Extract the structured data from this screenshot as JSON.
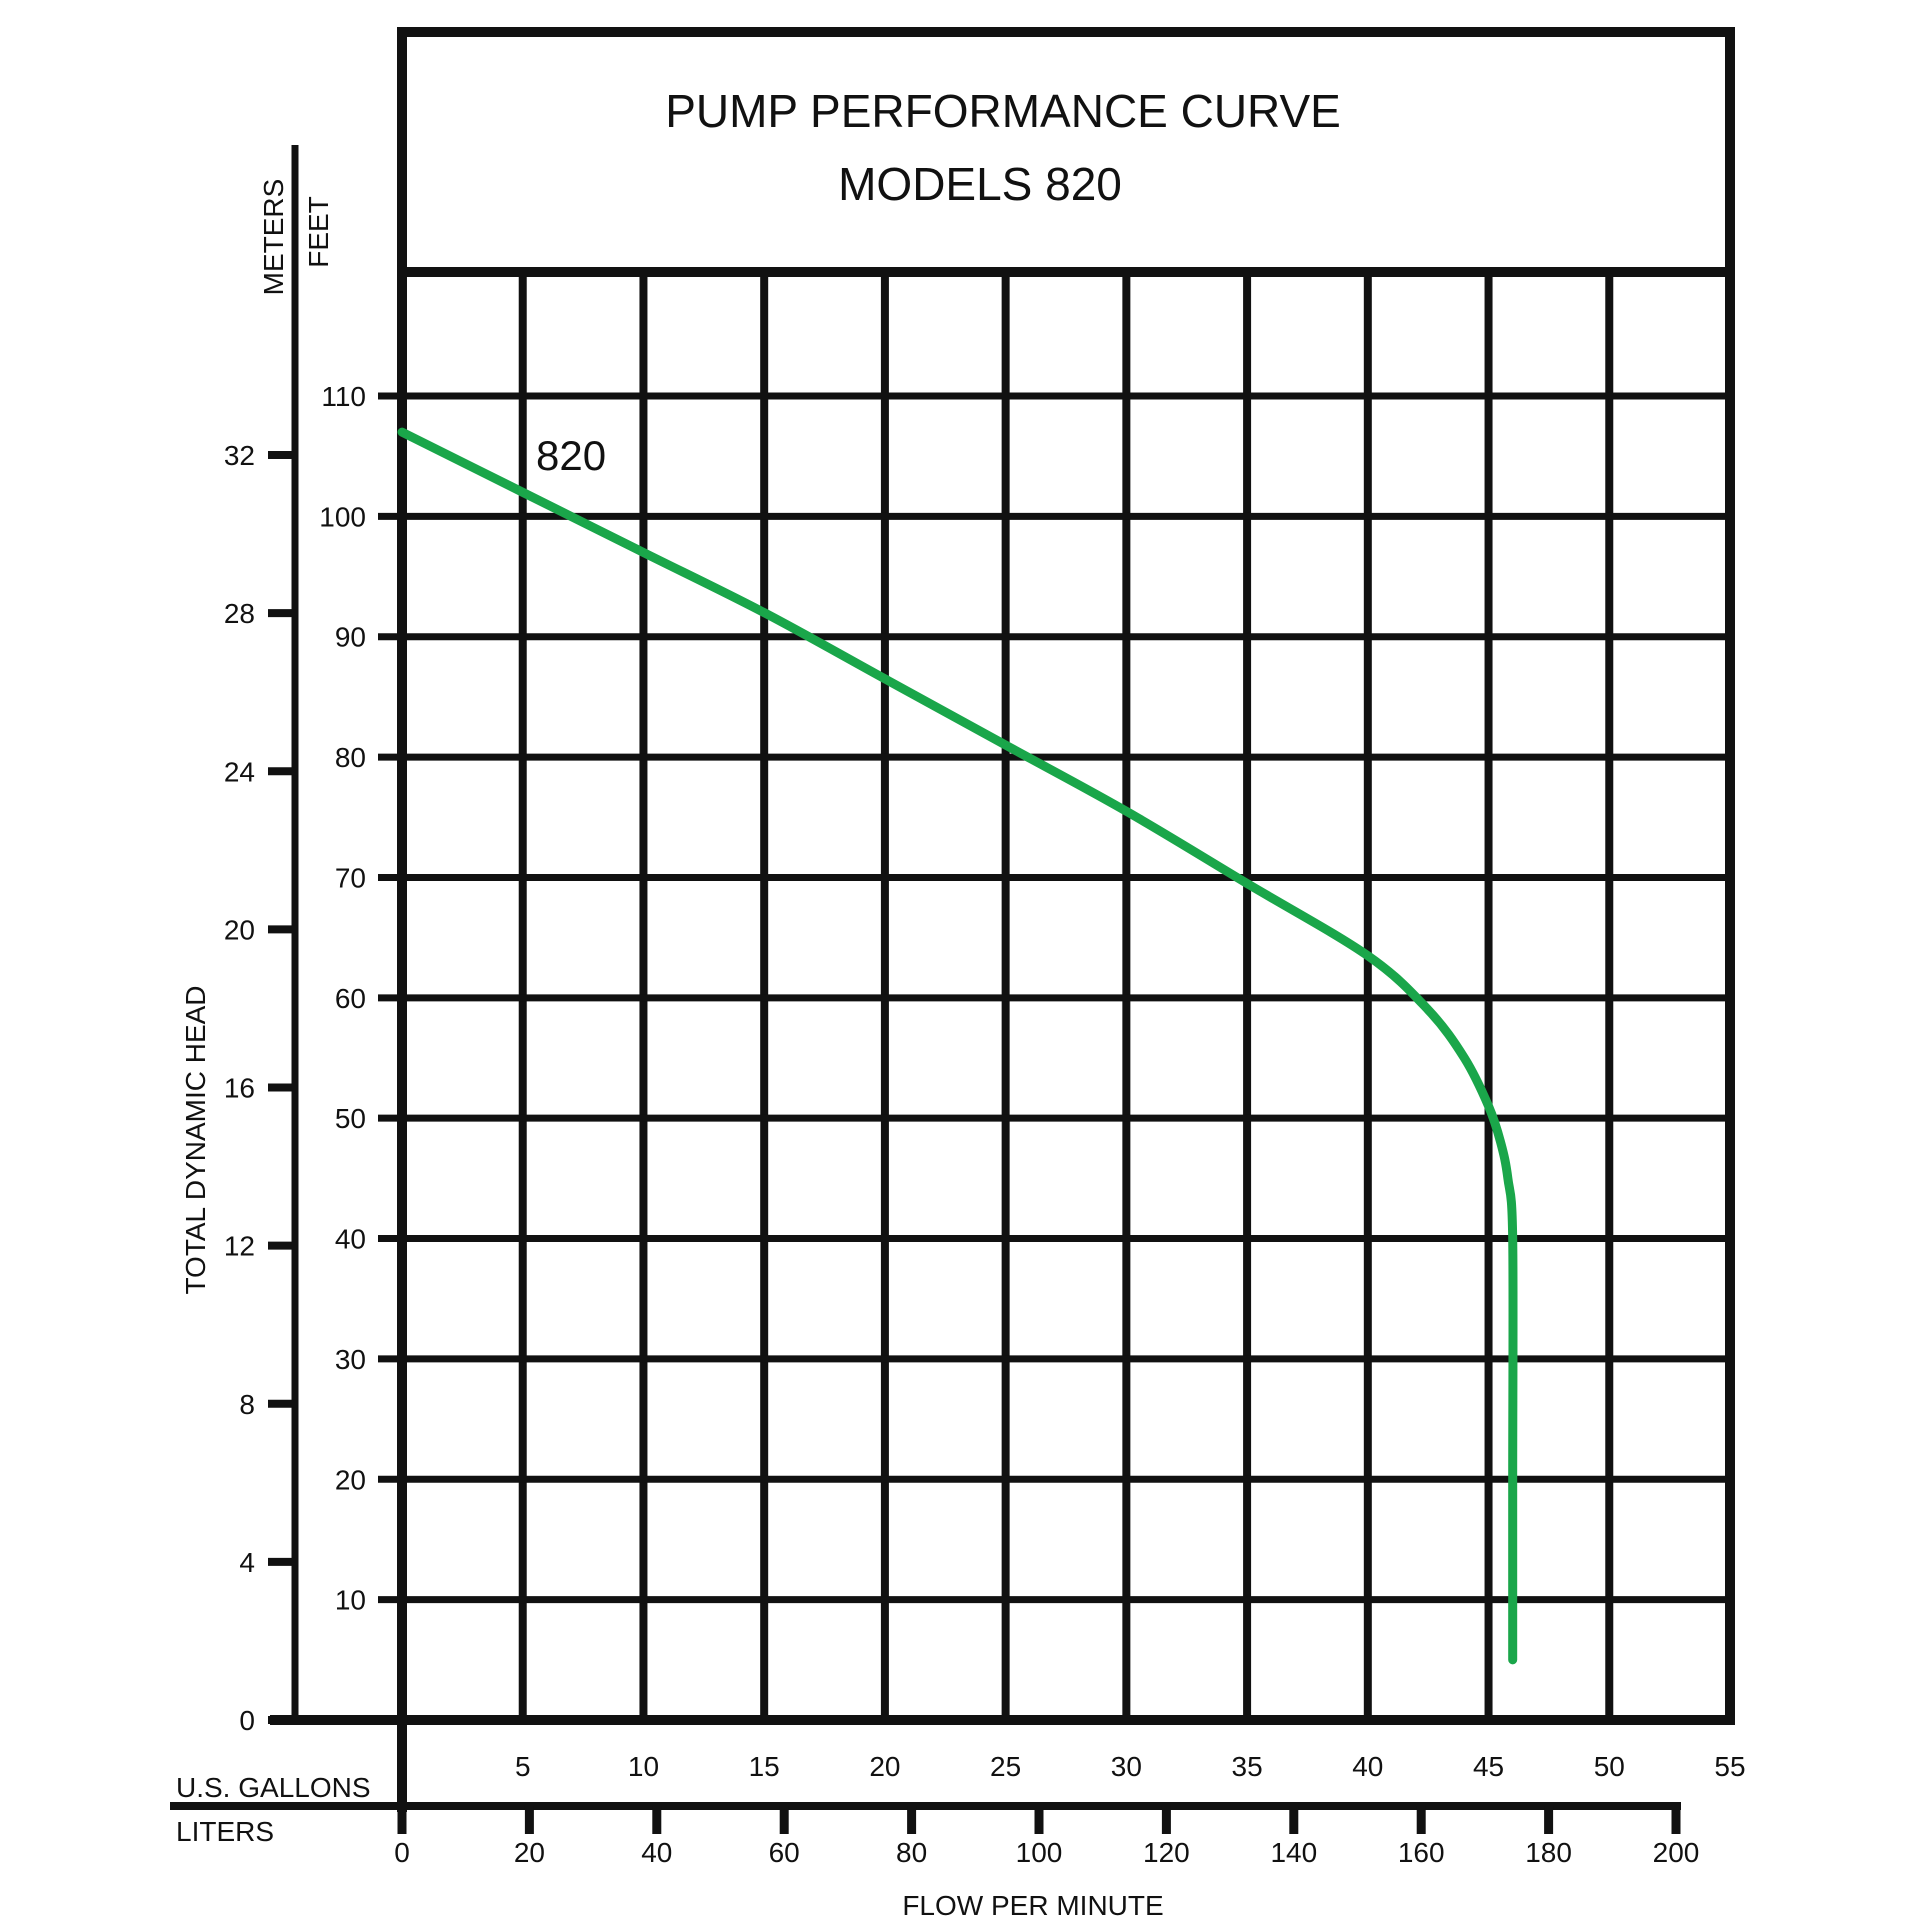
{
  "chart_data": {
    "type": "line",
    "title": "PUMP PERFORMANCE CURVE",
    "subtitle": "MODELS 820",
    "ylabel": "TOTAL DYNAMIC HEAD",
    "y_units": {
      "meters": "METERS",
      "feet": "FEET"
    },
    "x_units": {
      "gallons": "U.S. GALLONS",
      "liters": "LITERS"
    },
    "xlabel": "FLOW PER MINUTE",
    "x_gallons_ticks": [
      "5",
      "10",
      "15",
      "20",
      "25",
      "30",
      "35",
      "40",
      "45",
      "50",
      "55"
    ],
    "x_liters_ticks": [
      "0",
      "20",
      "40",
      "60",
      "80",
      "100",
      "120",
      "140",
      "160",
      "180",
      "200"
    ],
    "y_feet_ticks": [
      "10",
      "20",
      "30",
      "40",
      "50",
      "60",
      "70",
      "80",
      "90",
      "100",
      "110"
    ],
    "y_meters_ticks": [
      "0",
      "4",
      "8",
      "12",
      "16",
      "20",
      "24",
      "28",
      "32"
    ],
    "xlim_gallons": [
      0,
      55
    ],
    "xlim_liters": [
      0,
      200
    ],
    "ylim_feet": [
      0,
      110
    ],
    "ylim_meters": [
      0,
      32
    ],
    "grid": true,
    "colors": {
      "curve": "#1aa64a",
      "grid": "#111111"
    },
    "series": [
      {
        "name": "820",
        "x": [
          0,
          5,
          10,
          15,
          20,
          25,
          30,
          35,
          40,
          42.5,
          44,
          45,
          45.5,
          45.8,
          46,
          46,
          46
        ],
        "y": [
          107,
          102,
          97,
          92,
          86.5,
          81,
          75.5,
          69.5,
          63.5,
          59,
          55,
          51,
          48,
          45,
          40,
          20,
          5
        ]
      }
    ]
  }
}
